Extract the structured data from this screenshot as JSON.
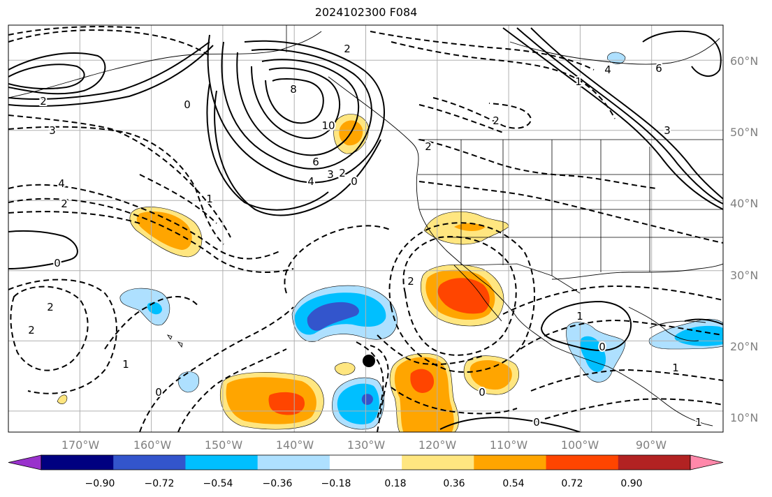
{
  "title": "2024102300 F084",
  "map": {
    "projection": "lat-lon",
    "lon_range": [
      -180,
      -80
    ],
    "lat_range": [
      7,
      65
    ],
    "gridlines": true,
    "lon_ticks": [
      "170°W",
      "160°W",
      "150°W",
      "140°W",
      "130°W",
      "120°W",
      "110°W",
      "100°W",
      "90°W"
    ],
    "lat_ticks": [
      "10°N",
      "20°N",
      "30°N",
      "40°N",
      "50°N",
      "60°N"
    ]
  },
  "colorbar": {
    "orientation": "horizontal",
    "extend": "both",
    "tick_labels": [
      "−0.90",
      "−0.72",
      "−0.54",
      "−0.36",
      "−0.18",
      "0.18",
      "0.36",
      "0.54",
      "0.72",
      "0.90"
    ],
    "colors": [
      "#9932cc",
      "#000080",
      "#3355cc",
      "#00bfff",
      "#aee0ff",
      "#ffffff",
      "#ffe680",
      "#ffa500",
      "#ff4500",
      "#b22222",
      "#ff88aa"
    ]
  },
  "contour_labels": [
    "8",
    "10",
    "6",
    "4",
    "3",
    "2",
    "0",
    "2",
    "1",
    "0",
    "2",
    "3",
    "4",
    "6",
    "2",
    "4",
    "2",
    "0",
    "2",
    "3",
    "2",
    "1",
    "0",
    "1",
    "0",
    "0",
    "1",
    "0",
    "2",
    "2",
    "1",
    "1"
  ],
  "marker": {
    "label": "point",
    "lon": -130.3,
    "lat": 18.0
  }
}
